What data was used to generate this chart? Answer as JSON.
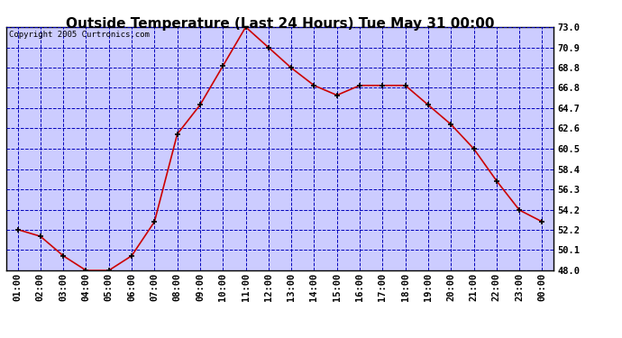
{
  "title": "Outside Temperature (Last 24 Hours) Tue May 31 00:00",
  "copyright_text": "Copyright 2005 Curtronics.com",
  "x_labels": [
    "01:00",
    "02:00",
    "03:00",
    "04:00",
    "05:00",
    "06:00",
    "07:00",
    "08:00",
    "09:00",
    "10:00",
    "11:00",
    "12:00",
    "13:00",
    "14:00",
    "15:00",
    "16:00",
    "17:00",
    "18:00",
    "19:00",
    "20:00",
    "21:00",
    "22:00",
    "23:00",
    "00:00"
  ],
  "y_values": [
    52.2,
    51.5,
    49.5,
    48.0,
    48.0,
    49.5,
    53.0,
    62.0,
    65.0,
    69.0,
    73.0,
    70.9,
    68.8,
    67.0,
    66.0,
    67.0,
    67.0,
    67.0,
    65.0,
    63.0,
    60.5,
    57.2,
    54.2,
    53.0
  ],
  "y_min": 48.0,
  "y_max": 73.0,
  "y_ticks": [
    48.0,
    50.1,
    52.2,
    54.2,
    56.3,
    58.4,
    60.5,
    62.6,
    64.7,
    66.8,
    68.8,
    70.9,
    73.0
  ],
  "line_color": "#cc0000",
  "marker_color": "#000000",
  "bg_color": "#ffffff",
  "plot_bg_color": "#ccccff",
  "grid_color": "#0000bb",
  "border_color": "#000000",
  "title_fontsize": 11,
  "tick_fontsize": 7.5,
  "copyright_fontsize": 6.5
}
